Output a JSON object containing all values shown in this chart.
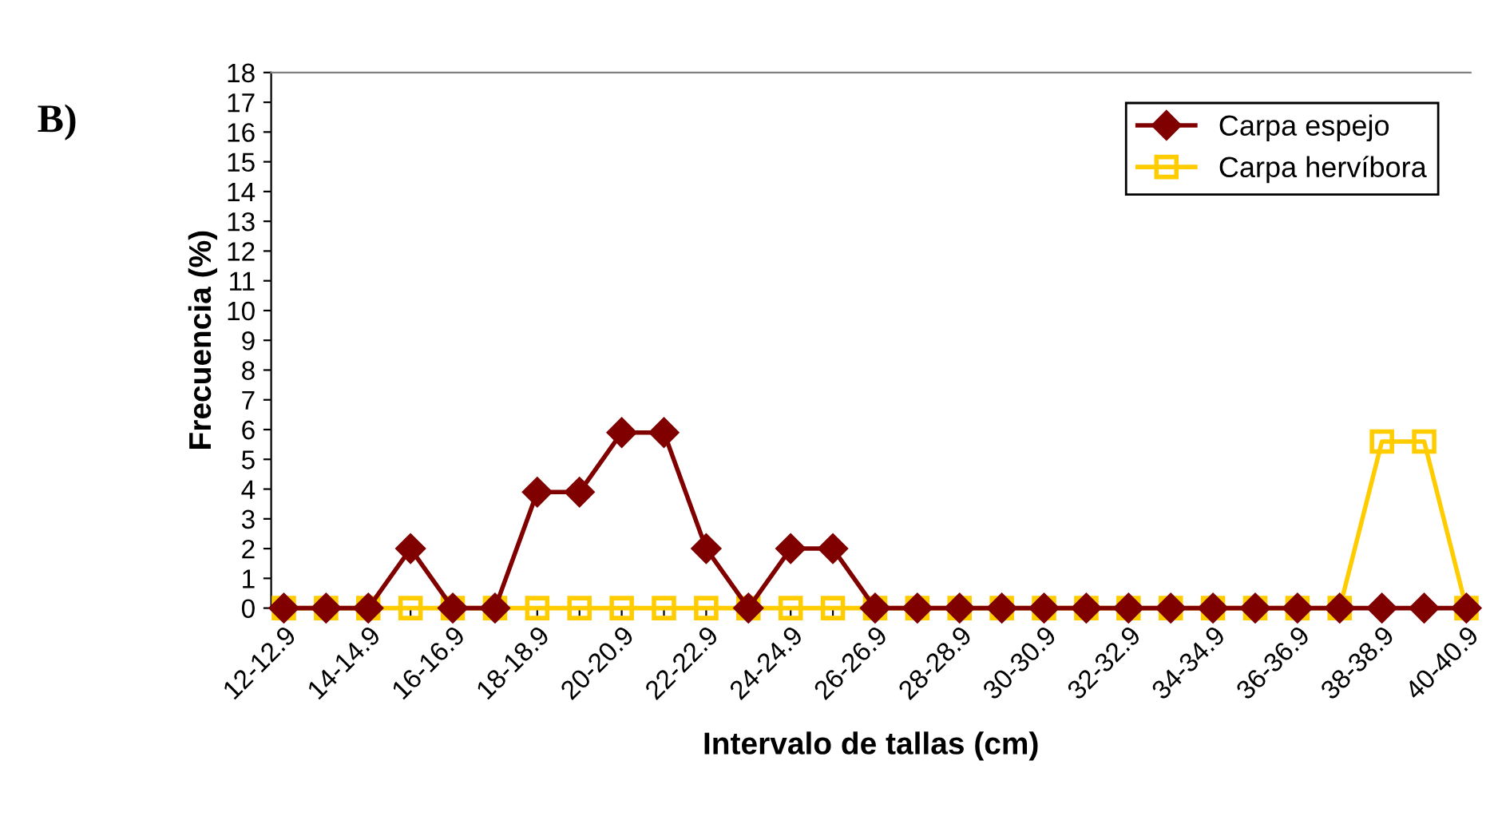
{
  "chart_data": {
    "type": "line",
    "xlabel": "Intervalo de tallas (cm)",
    "ylabel": "Frecuencia (%)",
    "annotations": [
      "B)"
    ],
    "categories": [
      "12-12.9",
      null,
      "14-14.9",
      null,
      "16-16.9",
      null,
      "18-18.9",
      null,
      "20-20.9",
      null,
      "22-22.9",
      null,
      "24-24.9",
      null,
      "26-26.9",
      null,
      "28-28.9",
      null,
      "30-30.9",
      null,
      "32-32.9",
      null,
      "34-34.9",
      null,
      "36-36.9",
      null,
      "38-38.9",
      null,
      "40-40.9"
    ],
    "series": [
      {
        "name": "Carpa espejo",
        "color": "#800000",
        "marker": "diamond",
        "values": [
          0,
          0,
          0,
          2.0,
          0,
          0,
          3.9,
          3.9,
          5.9,
          5.9,
          2.0,
          0,
          2.0,
          2.0,
          0,
          0,
          0,
          0,
          0,
          0,
          0,
          0,
          0,
          0,
          0,
          0,
          0,
          0,
          0
        ]
      },
      {
        "name": "Carpa hervíbora",
        "color": "#ffcc00",
        "marker": "square",
        "values": [
          0,
          0,
          0,
          0,
          0,
          0,
          0,
          0,
          0,
          0,
          0,
          0,
          0,
          0,
          0,
          0,
          0,
          0,
          0,
          0,
          0,
          0,
          0,
          0,
          0,
          0,
          5.6,
          5.6,
          0
        ]
      }
    ],
    "ylim": [
      0,
      18
    ],
    "yticks": [
      0,
      1,
      2,
      3,
      4,
      5,
      6,
      7,
      8,
      9,
      10,
      11,
      12,
      13,
      14,
      15,
      16,
      17,
      18
    ],
    "grid": false,
    "legend": "top right",
    "line_style": "solid"
  }
}
